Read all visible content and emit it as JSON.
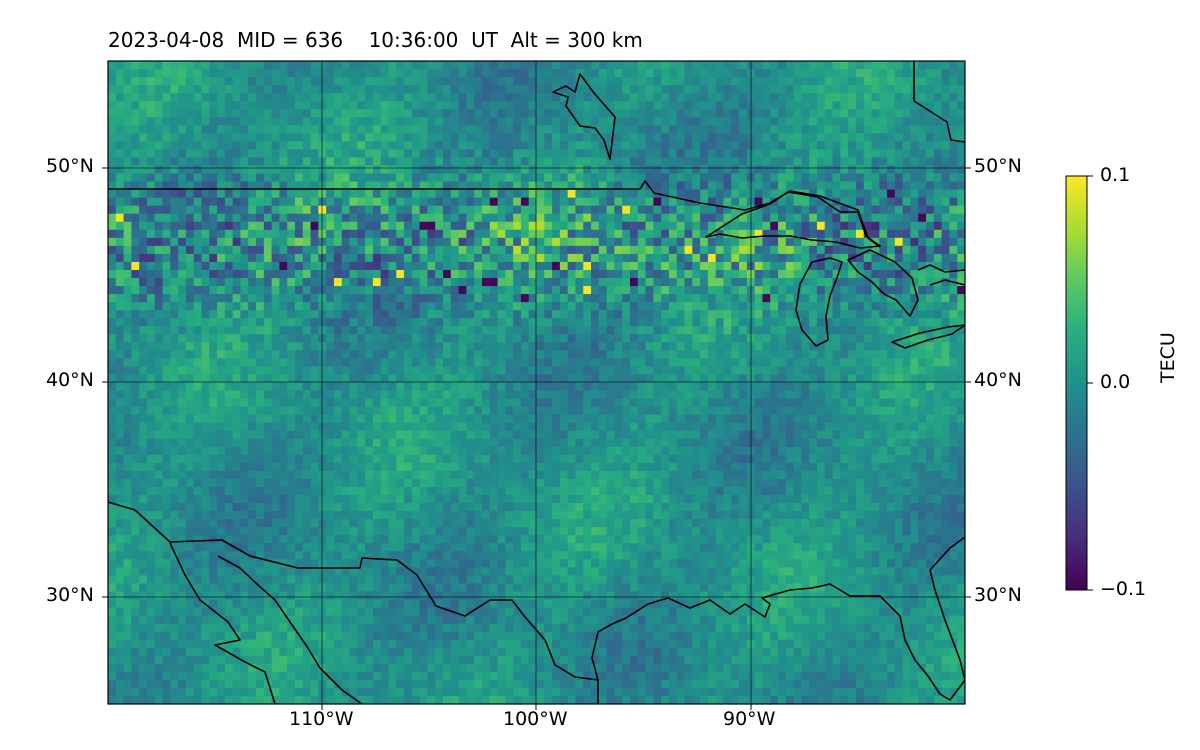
{
  "title": "2023-04-08  MID = 636    10:36:00  UT  Alt = 300 km",
  "map": {
    "projection": "equirectangular",
    "lon_range": [
      -120,
      -80
    ],
    "lat_range": [
      25,
      55
    ],
    "grid": true,
    "lat_ticks": [
      {
        "value": 50,
        "label": "50°N"
      },
      {
        "value": 40,
        "label": "40°N"
      },
      {
        "value": 30,
        "label": "30°N"
      }
    ],
    "lon_ticks": [
      {
        "value": -110,
        "label": "110°W"
      },
      {
        "value": -100,
        "label": "100°W"
      },
      {
        "value": -90,
        "label": "90°W"
      }
    ],
    "field": "TEC anomaly",
    "coastlines": "US/Canada border, Great Lakes, Gulf of Mexico, Mexico coast"
  },
  "colorbar": {
    "label": "TECU",
    "colormap": "viridis",
    "min": -0.1,
    "max": 0.1,
    "ticks": [
      {
        "value": 0.1,
        "label": "0.1"
      },
      {
        "value": 0.0,
        "label": "0.0"
      },
      {
        "value": -0.1,
        "label": "−0.1"
      }
    ]
  }
}
